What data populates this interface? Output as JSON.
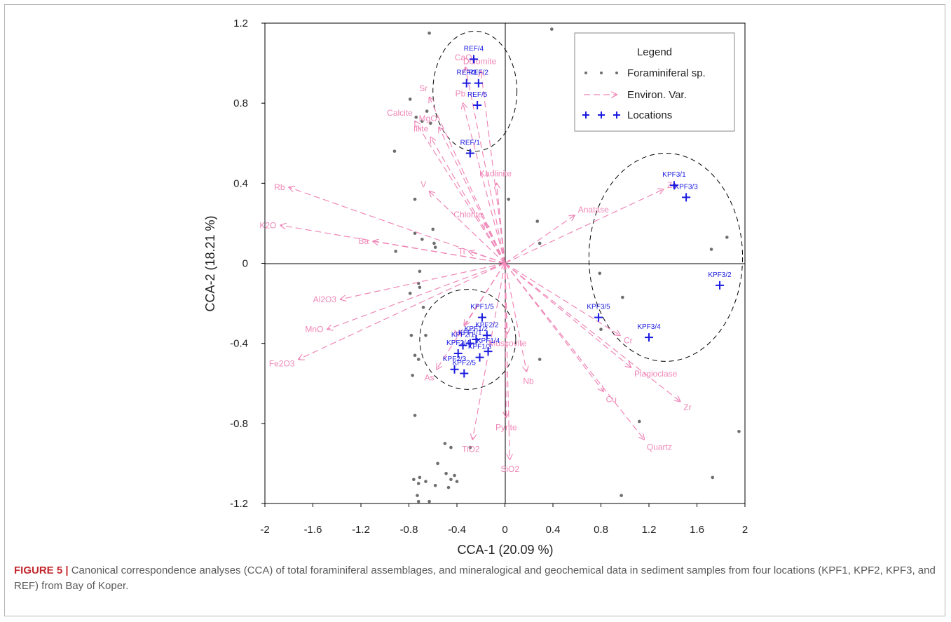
{
  "caption": {
    "label": "FIGURE 5 |",
    "text": " Canonical  correspondence analyses (CCA) of total foraminiferal assemblages, and mineralogical and geochemical data in sediment samples from four locations (KPF1, KPF2, KPF3, and REF) from Bay of Koper."
  },
  "colors": {
    "env": "#ef87b7",
    "location": "#1a1ae0",
    "species": "#6e6e6e",
    "axis": "#000000"
  },
  "chart_data": {
    "type": "scatter",
    "xlabel": "CCA-1 (20.09 %)",
    "ylabel": "CCA-2 (18.21 %)",
    "xlim": [
      -2,
      2
    ],
    "ylim": [
      -1.2,
      1.2
    ],
    "xticks": [
      "-2",
      "-1.6",
      "-1.2",
      "-0.8",
      "-0.4",
      "0",
      "0.4",
      "0.8",
      "1.2",
      "1.6",
      "2"
    ],
    "yticks": [
      "1.2",
      "0.8",
      "0.4",
      "0",
      "-0.4",
      "-0.8",
      "-1.2"
    ],
    "grid": false,
    "zero_lines": true,
    "legend": {
      "title": "Legend",
      "placement": "top-right",
      "entries": [
        {
          "name": "Foraminiferal sp.",
          "icon": "dot-series"
        },
        {
          "name": "Environ. Var.",
          "icon": "dashed-arrow"
        },
        {
          "name": "Locations",
          "icon": "plus-series"
        }
      ]
    },
    "env_vectors": [
      {
        "name": "CaO",
        "x": -0.33,
        "y": 0.98
      },
      {
        "name": "Dolomite",
        "x": -0.2,
        "y": 0.96
      },
      {
        "name": "Sr",
        "x": -0.63,
        "y": 0.83
      },
      {
        "name": "Pb",
        "x": -0.35,
        "y": 0.8
      },
      {
        "name": "Calcite",
        "x": -0.75,
        "y": 0.71
      },
      {
        "name": "MgO",
        "x": -0.55,
        "y": 0.68
      },
      {
        "name": "Illite",
        "x": -0.62,
        "y": 0.63
      },
      {
        "name": "Kaolinite",
        "x": -0.07,
        "y": 0.4
      },
      {
        "name": "Rb",
        "x": -1.8,
        "y": 0.38
      },
      {
        "name": "V",
        "x": -0.63,
        "y": 0.36
      },
      {
        "name": "K2O",
        "x": -1.87,
        "y": 0.19
      },
      {
        "name": "Chlorite",
        "x": -0.17,
        "y": 0.2
      },
      {
        "name": "Ba",
        "x": -1.1,
        "y": 0.11
      },
      {
        "name": "Ti",
        "x": -0.3,
        "y": 0.06
      },
      {
        "name": "Anatase",
        "x": 0.58,
        "y": 0.24
      },
      {
        "name": "Zn",
        "x": 1.32,
        "y": 0.37
      },
      {
        "name": "Al2O3",
        "x": -1.37,
        "y": -0.18
      },
      {
        "name": "MnO",
        "x": -1.48,
        "y": -0.33
      },
      {
        "name": "Fe2O3",
        "x": -1.72,
        "y": -0.48
      },
      {
        "name": "Ni",
        "x": -0.34,
        "y": -0.31
      },
      {
        "name": "As",
        "x": -0.57,
        "y": -0.53
      },
      {
        "name": "Muscovite",
        "x": 0.02,
        "y": -0.35
      },
      {
        "name": "Nb",
        "x": 0.18,
        "y": -0.54
      },
      {
        "name": "Cr",
        "x": 0.96,
        "y": -0.36
      },
      {
        "name": "Plagioclase",
        "x": 1.05,
        "y": -0.52
      },
      {
        "name": "Cu",
        "x": 0.82,
        "y": -0.64
      },
      {
        "name": "Zr",
        "x": 1.46,
        "y": -0.69
      },
      {
        "name": "Quartz",
        "x": 1.16,
        "y": -0.88
      },
      {
        "name": "Pyrite",
        "x": 0.01,
        "y": -0.77
      },
      {
        "name": "TiO2",
        "x": -0.27,
        "y": -0.88
      },
      {
        "name": "SiO2",
        "x": 0.04,
        "y": -0.98
      }
    ],
    "locations": [
      {
        "name": "REF/4",
        "x": -0.26,
        "y": 1.02
      },
      {
        "name": "REF/3",
        "x": -0.32,
        "y": 0.9
      },
      {
        "name": "REF/2",
        "x": -0.22,
        "y": 0.9
      },
      {
        "name": "REF/5",
        "x": -0.23,
        "y": 0.79
      },
      {
        "name": "REF/1",
        "x": -0.29,
        "y": 0.55
      },
      {
        "name": "KPF3/1",
        "x": 1.41,
        "y": 0.39
      },
      {
        "name": "KPF3/3",
        "x": 1.51,
        "y": 0.33
      },
      {
        "name": "KPF3/2",
        "x": 1.79,
        "y": -0.11
      },
      {
        "name": "KPF3/5",
        "x": 0.78,
        "y": -0.27
      },
      {
        "name": "KPF3/4",
        "x": 1.2,
        "y": -0.37
      },
      {
        "name": "KPF1/5",
        "x": -0.19,
        "y": -0.27
      },
      {
        "name": "KPF1/2",
        "x": -0.24,
        "y": -0.38
      },
      {
        "name": "KPF2/2",
        "x": -0.15,
        "y": -0.36
      },
      {
        "name": "KPF1/1",
        "x": -0.29,
        "y": -0.4
      },
      {
        "name": "KPF2/1",
        "x": -0.35,
        "y": -0.41
      },
      {
        "name": "KPF1/4",
        "x": -0.14,
        "y": -0.44
      },
      {
        "name": "KPF2/4",
        "x": -0.39,
        "y": -0.45
      },
      {
        "name": "KPF1/3",
        "x": -0.21,
        "y": -0.47
      },
      {
        "name": "KPF2/3",
        "x": -0.42,
        "y": -0.53
      },
      {
        "name": "KPF2/5",
        "x": -0.34,
        "y": -0.55
      }
    ],
    "species": [
      [
        -0.63,
        1.15
      ],
      [
        0.39,
        1.17
      ],
      [
        -0.79,
        0.82
      ],
      [
        -0.65,
        0.76
      ],
      [
        -0.74,
        0.73
      ],
      [
        -0.69,
        0.71
      ],
      [
        -0.62,
        0.7
      ],
      [
        -0.92,
        0.56
      ],
      [
        -0.75,
        0.32
      ],
      [
        0.03,
        0.32
      ],
      [
        -0.75,
        0.15
      ],
      [
        -0.6,
        0.17
      ],
      [
        -0.69,
        0.12
      ],
      [
        -0.59,
        0.1
      ],
      [
        -0.58,
        0.08
      ],
      [
        -0.91,
        0.06
      ],
      [
        0.27,
        0.21
      ],
      [
        0.29,
        0.1
      ],
      [
        1.72,
        0.07
      ],
      [
        1.85,
        0.13
      ],
      [
        -0.71,
        -0.04
      ],
      [
        -0.72,
        -0.1
      ],
      [
        -0.71,
        -0.12
      ],
      [
        -0.79,
        -0.15
      ],
      [
        -0.68,
        -0.22
      ],
      [
        -0.78,
        -0.36
      ],
      [
        -0.66,
        -0.36
      ],
      [
        -0.75,
        -0.46
      ],
      [
        -0.72,
        -0.48
      ],
      [
        -0.77,
        -0.56
      ],
      [
        0.79,
        -0.05
      ],
      [
        0.98,
        -0.17
      ],
      [
        0.8,
        -0.33
      ],
      [
        0.29,
        -0.48
      ],
      [
        -0.75,
        -0.76
      ],
      [
        -0.29,
        -0.92
      ],
      [
        1.12,
        -0.79
      ],
      [
        1.95,
        -0.84
      ],
      [
        1.73,
        -1.07
      ],
      [
        0.97,
        -1.16
      ],
      [
        -0.5,
        -0.9
      ],
      [
        -0.45,
        -0.92
      ],
      [
        -0.56,
        -1.0
      ],
      [
        -0.49,
        -1.05
      ],
      [
        -0.42,
        -1.06
      ],
      [
        -0.71,
        -1.07
      ],
      [
        -0.76,
        -1.08
      ],
      [
        -0.66,
        -1.09
      ],
      [
        -0.45,
        -1.08
      ],
      [
        -0.4,
        -1.09
      ],
      [
        -0.72,
        -1.1
      ],
      [
        -0.58,
        -1.11
      ],
      [
        -0.47,
        -1.12
      ],
      [
        -0.73,
        -1.16
      ],
      [
        -0.72,
        -1.19
      ],
      [
        -0.63,
        -1.19
      ]
    ],
    "clusters": [
      {
        "group": "REF",
        "cx": -0.25,
        "cy": 0.86,
        "rx": 0.35,
        "ry": 0.3
      },
      {
        "group": "KPF3",
        "cx": 1.34,
        "cy": 0.03,
        "rx": 0.64,
        "ry": 0.52
      },
      {
        "group": "KPF1-KPF2",
        "cx": -0.31,
        "cy": -0.38,
        "rx": 0.4,
        "ry": 0.25
      }
    ]
  }
}
